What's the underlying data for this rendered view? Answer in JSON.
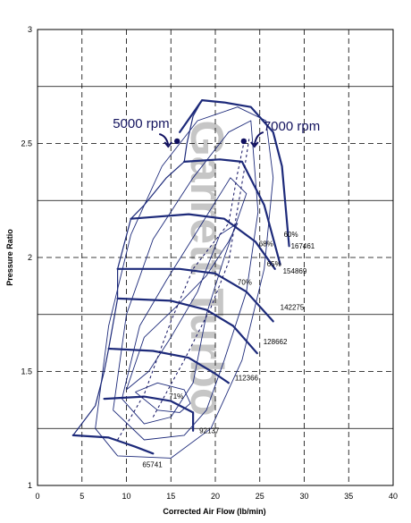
{
  "chart_data": {
    "type": "line",
    "title": "",
    "xlabel": "Corrected Air Flow (lb/min)",
    "ylabel": "Pressure Ratio",
    "xlim": [
      0,
      40
    ],
    "ylim": [
      1,
      3
    ],
    "xticks": [
      "0",
      "5",
      "10",
      "15",
      "20",
      "25",
      "30",
      "35",
      "40"
    ],
    "yticks": [
      "1",
      "1.5",
      "2",
      "2.5",
      "3"
    ],
    "grid": {
      "major": "solid",
      "minor": "dashed"
    },
    "colors": {
      "map": "#1d2a7a",
      "operating_line": "#101060",
      "watermark": "#b3b3b3",
      "grid": "#000000"
    },
    "watermark_text": "Garrett Turbo",
    "speed_lines": [
      {
        "label": "65741",
        "points": [
          [
            4,
            1.22
          ],
          [
            8,
            1.21
          ],
          [
            11,
            1.17
          ],
          [
            13,
            1.14
          ]
        ]
      },
      {
        "label": "92137",
        "points": [
          [
            7.5,
            1.38
          ],
          [
            12,
            1.39
          ],
          [
            15,
            1.37
          ],
          [
            17.5,
            1.32
          ],
          [
            17.5,
            1.24
          ]
        ]
      },
      {
        "label": "112366",
        "points": [
          [
            8,
            1.6
          ],
          [
            13,
            1.59
          ],
          [
            17,
            1.56
          ],
          [
            20,
            1.49
          ],
          [
            21.5,
            1.45
          ]
        ]
      },
      {
        "label": "128662",
        "points": [
          [
            9,
            1.82
          ],
          [
            15,
            1.81
          ],
          [
            19,
            1.77
          ],
          [
            22,
            1.7
          ],
          [
            24.7,
            1.58
          ]
        ]
      },
      {
        "label": "142275",
        "points": [
          [
            9,
            1.95
          ],
          [
            16,
            1.95
          ],
          [
            20,
            1.93
          ],
          [
            23.5,
            1.85
          ],
          [
            26.5,
            1.72
          ]
        ]
      },
      {
        "label": "154869",
        "points": [
          [
            10.5,
            2.17
          ],
          [
            17,
            2.19
          ],
          [
            21,
            2.17
          ],
          [
            24.5,
            2.07
          ],
          [
            26.7,
            1.95
          ]
        ]
      },
      {
        "label": "167461",
        "points": [
          [
            16.5,
            2.42
          ],
          [
            20.5,
            2.43
          ],
          [
            23,
            2.42
          ],
          [
            25.5,
            2.23
          ],
          [
            27.3,
            1.97
          ]
        ]
      },
      {
        "label": "",
        "points": [
          [
            16,
            2.55
          ],
          [
            18.5,
            2.69
          ],
          [
            21,
            2.68
          ],
          [
            24,
            2.66
          ],
          [
            26.5,
            2.55
          ],
          [
            27.5,
            2.4
          ],
          [
            28.3,
            2.05
          ]
        ]
      }
    ],
    "speed_label_positions": [
      [
        11.8,
        1.08
      ],
      [
        18.2,
        1.23
      ],
      [
        22.2,
        1.46
      ],
      [
        25.4,
        1.62
      ],
      [
        27.3,
        1.77
      ],
      [
        27.6,
        1.93
      ],
      [
        28.5,
        2.04
      ]
    ],
    "surge_line": [
      [
        4,
        1.22
      ],
      [
        6.5,
        1.35
      ],
      [
        7.5,
        1.5
      ],
      [
        8,
        1.6
      ],
      [
        9,
        1.82
      ],
      [
        9,
        1.95
      ],
      [
        10.5,
        2.17
      ],
      [
        12,
        2.23
      ],
      [
        14.5,
        2.35
      ],
      [
        16.5,
        2.42
      ],
      [
        16.8,
        2.5
      ],
      [
        17.5,
        2.62
      ],
      [
        18.5,
        2.69
      ]
    ],
    "efficiency_islands": [
      {
        "label": "71%",
        "points": [
          [
            11,
            1.41
          ],
          [
            13.5,
            1.33
          ],
          [
            16,
            1.32
          ],
          [
            17.2,
            1.36
          ],
          [
            16.5,
            1.42
          ],
          [
            13.5,
            1.45
          ],
          [
            11,
            1.41
          ]
        ]
      },
      {
        "label": "70%",
        "points": [
          [
            10,
            1.42
          ],
          [
            12,
            1.65
          ],
          [
            15.5,
            1.78
          ],
          [
            19,
            1.92
          ],
          [
            21.5,
            2.07
          ],
          [
            22.5,
            2.15
          ],
          [
            20.5,
            2.1
          ],
          [
            18,
            1.85
          ],
          [
            15,
            1.65
          ],
          [
            12.5,
            1.5
          ],
          [
            10,
            1.42
          ]
        ]
      },
      {
        "label": "68%",
        "points": [
          [
            9.5,
            1.38
          ],
          [
            11.5,
            1.7
          ],
          [
            14.5,
            1.9
          ],
          [
            18.5,
            2.15
          ],
          [
            21.7,
            2.35
          ],
          [
            23.5,
            2.28
          ],
          [
            21,
            2.0
          ],
          [
            19,
            1.75
          ],
          [
            17.5,
            1.45
          ],
          [
            15,
            1.3
          ],
          [
            12,
            1.27
          ],
          [
            9.5,
            1.38
          ]
        ]
      },
      {
        "label": "65%",
        "points": [
          [
            8.5,
            1.33
          ],
          [
            10,
            1.75
          ],
          [
            13,
            2.08
          ],
          [
            17.5,
            2.35
          ],
          [
            21.5,
            2.55
          ],
          [
            24,
            2.6
          ],
          [
            24.8,
            2.2
          ],
          [
            23.5,
            1.85
          ],
          [
            21,
            1.55
          ],
          [
            19,
            1.33
          ],
          [
            16.5,
            1.22
          ],
          [
            12,
            1.2
          ],
          [
            8.5,
            1.33
          ]
        ]
      },
      {
        "label": "60%",
        "points": [
          [
            6.5,
            1.25
          ],
          [
            8,
            1.7
          ],
          [
            10.5,
            2.1
          ],
          [
            14,
            2.4
          ],
          [
            18,
            2.6
          ],
          [
            22.5,
            2.66
          ],
          [
            25.7,
            2.6
          ],
          [
            26.5,
            2.35
          ],
          [
            25.5,
            1.95
          ],
          [
            23,
            1.55
          ],
          [
            19.5,
            1.25
          ],
          [
            15,
            1.12
          ],
          [
            9,
            1.13
          ],
          [
            6.5,
            1.25
          ]
        ]
      }
    ],
    "efficiency_label_positions": [
      [
        14.8,
        1.38
      ],
      [
        22.5,
        1.88
      ],
      [
        24.9,
        2.05
      ],
      [
        25.8,
        1.96
      ],
      [
        27.7,
        2.09
      ]
    ],
    "operating_lines": [
      {
        "points": [
          [
            9,
            1.2
          ],
          [
            12,
            1.4
          ],
          [
            15,
            1.72
          ],
          [
            17.5,
            1.95
          ],
          [
            19.5,
            2.05
          ],
          [
            21.5,
            2.15
          ],
          [
            22.5,
            2.37
          ],
          [
            23.3,
            2.52
          ]
        ]
      },
      {
        "points": [
          [
            13,
            1.3
          ],
          [
            16.5,
            1.55
          ],
          [
            19.5,
            1.78
          ],
          [
            21.5,
            1.98
          ],
          [
            22,
            2.1
          ],
          [
            23.2,
            2.37
          ],
          [
            23.8,
            2.52
          ]
        ]
      }
    ],
    "annotations": [
      {
        "text": "5000 rpm",
        "marker": [
          15.7,
          2.51
        ]
      },
      {
        "text": "7000 rpm",
        "marker": [
          23.2,
          2.51
        ]
      }
    ]
  }
}
